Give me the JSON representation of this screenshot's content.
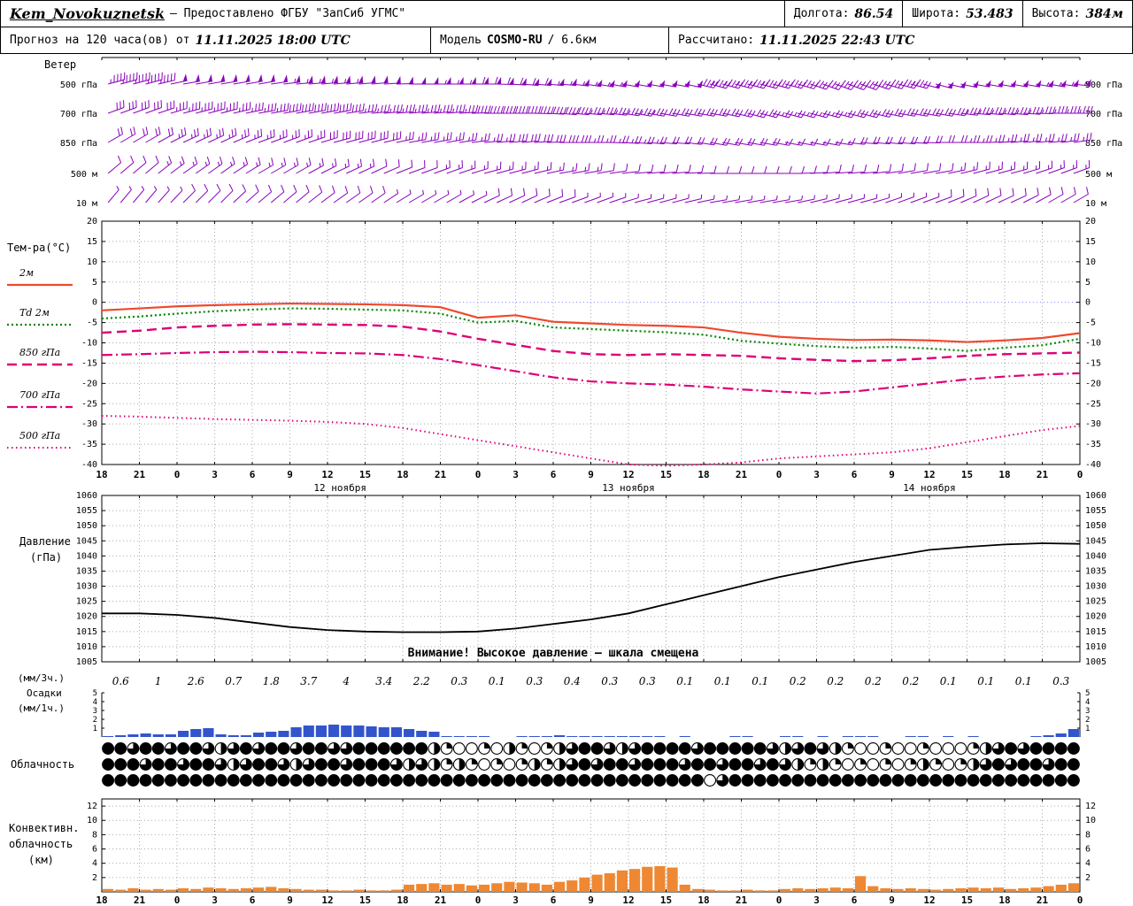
{
  "header": {
    "station": "Kem_Novokuznetsk",
    "provider": "— Предоставлено ФГБУ \"ЗапСиб УГМС\"",
    "lon_label": "Долгота:",
    "lon": "86.54",
    "lat_label": "Широта:",
    "lat": "53.483",
    "alt_label": "Высота:",
    "alt": "384м",
    "forecast_label": "Прогноз на 120 часа(ов) от",
    "run_time": "11.11.2025 18:00 UTC",
    "model_label": "Модель",
    "model_name": "COSMO-RU",
    "model_res": "/ 6.6км",
    "calc_label": "Рассчитано:",
    "calc_time": "11.11.2025 22:43 UTC"
  },
  "colors": {
    "wind": "#8800bb",
    "temp_2m": "#ee4a2d",
    "td_2m": "#008800",
    "temp_upper": "#dd0077",
    "pressure": "#000000",
    "precip": "#3355cc",
    "convective": "#ee8833",
    "zero_line": "#7788ff",
    "grid": "#aaaaaa"
  },
  "axis": {
    "hour_labels": [
      "18",
      "21",
      "0",
      "3",
      "6",
      "9",
      "12",
      "15",
      "18",
      "21",
      "0",
      "3",
      "6",
      "9",
      "12",
      "15",
      "18",
      "21",
      "0",
      "3",
      "6",
      "9",
      "12",
      "15",
      "18",
      "21",
      "0"
    ],
    "date_labels": [
      {
        "text": "12 ноября",
        "rel": 19
      },
      {
        "text": "13 ноября",
        "rel": 42
      },
      {
        "text": "14 ноября",
        "rel": 66
      }
    ]
  },
  "chart_data": [
    {
      "id": "wind",
      "type": "wind-barbs",
      "title": "Ветер",
      "units": "kt",
      "levels": [
        {
          "label": "500 гПа",
          "speeds": [
            45,
            45,
            50,
            50,
            50,
            55,
            55,
            50,
            50,
            55,
            60,
            60,
            55,
            55,
            50,
            50,
            45,
            45,
            40,
            40,
            45,
            45,
            50,
            50,
            50,
            55,
            55
          ],
          "dirs": [
            255,
            255,
            260,
            260,
            260,
            265,
            265,
            265,
            270,
            270,
            270,
            275,
            275,
            280,
            280,
            280,
            285,
            285,
            285,
            290,
            290,
            285,
            285,
            280,
            280,
            280,
            275
          ]
        },
        {
          "label": "700 гПа",
          "speeds": [
            30,
            30,
            35,
            35,
            35,
            40,
            40,
            35,
            35,
            35,
            40,
            40,
            40,
            35,
            35,
            30,
            30,
            30,
            25,
            25,
            30,
            30,
            30,
            35,
            35,
            35,
            35
          ],
          "dirs": [
            250,
            250,
            255,
            255,
            260,
            260,
            260,
            265,
            265,
            265,
            270,
            270,
            275,
            275,
            280,
            280,
            280,
            285,
            285,
            285,
            285,
            280,
            280,
            275,
            275,
            270,
            270
          ]
        },
        {
          "label": "850 гПа",
          "speeds": [
            20,
            20,
            25,
            25,
            25,
            25,
            30,
            30,
            25,
            25,
            25,
            30,
            30,
            25,
            25,
            20,
            20,
            20,
            15,
            15,
            20,
            20,
            20,
            25,
            25,
            25,
            25
          ],
          "dirs": [
            240,
            240,
            245,
            245,
            250,
            250,
            255,
            255,
            260,
            260,
            265,
            265,
            270,
            270,
            275,
            275,
            280,
            280,
            280,
            280,
            275,
            275,
            270,
            270,
            265,
            265,
            260
          ]
        },
        {
          "label": "500 м",
          "speeds": [
            10,
            12,
            15,
            15,
            15,
            15,
            15,
            12,
            10,
            15,
            15,
            15,
            15,
            12,
            10,
            10,
            10,
            10,
            8,
            10,
            10,
            10,
            12,
            15,
            15,
            15,
            15
          ],
          "dirs": [
            230,
            230,
            235,
            235,
            240,
            240,
            245,
            245,
            250,
            250,
            255,
            255,
            260,
            260,
            265,
            265,
            270,
            270,
            270,
            265,
            265,
            260,
            260,
            255,
            255,
            250,
            250
          ]
        },
        {
          "label": "10 м",
          "speeds": [
            5,
            5,
            8,
            8,
            10,
            10,
            10,
            8,
            5,
            5,
            8,
            10,
            8,
            5,
            5,
            5,
            5,
            5,
            5,
            5,
            5,
            5,
            8,
            8,
            10,
            10,
            10
          ],
          "dirs": [
            220,
            220,
            225,
            225,
            230,
            230,
            235,
            235,
            240,
            240,
            245,
            245,
            250,
            250,
            255,
            255,
            260,
            260,
            260,
            255,
            255,
            250,
            250,
            245,
            245,
            240,
            240
          ]
        }
      ]
    },
    {
      "id": "temperature",
      "type": "line",
      "title": "Тем-ра(°C)",
      "ylim": [
        -40,
        20
      ],
      "x_step_hours": 3,
      "yticks": [
        20,
        15,
        10,
        5,
        0,
        -5,
        -10,
        -15,
        -20,
        -25,
        -30,
        -35,
        -40
      ],
      "series": [
        {
          "name": "2м",
          "style": "solid",
          "color": "#ee4a2d",
          "width": 2.2,
          "values": [
            -2.0,
            -1.5,
            -1.0,
            -0.7,
            -0.5,
            -0.3,
            -0.4,
            -0.5,
            -0.7,
            -1.2,
            -3.8,
            -3.2,
            -4.8,
            -5.2,
            -5.6,
            -5.8,
            -6.2,
            -7.5,
            -8.5,
            -9.0,
            -9.3,
            -9.2,
            -9.4,
            -9.8,
            -9.4,
            -8.8,
            -7.6
          ]
        },
        {
          "name": "Td 2м",
          "style": "dotted",
          "color": "#008800",
          "width": 2.2,
          "values": [
            -4.0,
            -3.5,
            -2.8,
            -2.2,
            -1.8,
            -1.5,
            -1.6,
            -1.8,
            -2.0,
            -2.8,
            -5.0,
            -4.6,
            -6.2,
            -6.6,
            -7.0,
            -7.4,
            -8.0,
            -9.5,
            -10.2,
            -10.8,
            -11.2,
            -11.0,
            -11.4,
            -12.0,
            -11.2,
            -10.6,
            -9.0
          ]
        },
        {
          "name": "850 гПа",
          "style": "longdash",
          "color": "#dd0077",
          "width": 2.4,
          "values": [
            -7.5,
            -7.0,
            -6.2,
            -5.8,
            -5.5,
            -5.4,
            -5.5,
            -5.6,
            -6.0,
            -7.2,
            -9.0,
            -10.5,
            -12.0,
            -12.8,
            -13.0,
            -12.8,
            -13.0,
            -13.2,
            -13.8,
            -14.2,
            -14.5,
            -14.3,
            -13.8,
            -13.2,
            -12.8,
            -12.6,
            -12.4
          ]
        },
        {
          "name": "700 гПа",
          "style": "dashdot",
          "color": "#dd0077",
          "width": 2.2,
          "values": [
            -13.0,
            -12.8,
            -12.5,
            -12.3,
            -12.2,
            -12.3,
            -12.5,
            -12.6,
            -13.0,
            -14.0,
            -15.5,
            -17.0,
            -18.5,
            -19.5,
            -20.0,
            -20.3,
            -20.8,
            -21.5,
            -22.0,
            -22.5,
            -22.0,
            -21.0,
            -20.0,
            -19.0,
            -18.3,
            -17.8,
            -17.5
          ]
        },
        {
          "name": "500 гПа",
          "style": "finedot",
          "color": "#dd0077",
          "width": 2.0,
          "values": [
            -28.0,
            -28.2,
            -28.5,
            -28.8,
            -29.0,
            -29.2,
            -29.5,
            -30.0,
            -31.0,
            -32.5,
            -34.0,
            -35.5,
            -37.0,
            -38.5,
            -40.0,
            -40.3,
            -40.0,
            -39.5,
            -38.5,
            -38.0,
            -37.5,
            -37.0,
            -36.0,
            -34.5,
            -33.0,
            -31.5,
            -30.5
          ]
        }
      ]
    },
    {
      "id": "pressure",
      "type": "line",
      "title_lines": [
        "Давление",
        "(гПа)"
      ],
      "ylim": [
        1005,
        1060
      ],
      "yticks": [
        1060,
        1055,
        1050,
        1045,
        1040,
        1035,
        1030,
        1025,
        1020,
        1015,
        1010,
        1005
      ],
      "color": "#000000",
      "warning": "Внимание! Высокое давление — шкала смещена",
      "values": [
        1021,
        1021,
        1020.5,
        1019.5,
        1018,
        1016.5,
        1015.5,
        1015,
        1014.8,
        1014.8,
        1015,
        1016,
        1017.5,
        1019,
        1021,
        1024,
        1027,
        1030,
        1033,
        1035.5,
        1038,
        1040,
        1042,
        1043,
        1043.8,
        1044.2,
        1044
      ]
    },
    {
      "id": "precipitation",
      "type": "bar",
      "title_lines": [
        "(мм/3ч.)",
        "Осадки",
        "(мм/1ч.)"
      ],
      "ylim": [
        0,
        5
      ],
      "yticks": [
        1,
        2,
        3,
        4,
        5
      ],
      "color": "#3355cc",
      "labels_3h": [
        "0.6",
        "1",
        "2.6",
        "0.7",
        "1.8",
        "3.7",
        "4",
        "3.4",
        "2.2",
        "0.3",
        "0.1",
        "0.3",
        "0.4",
        "0.3",
        "0.3",
        "0.1",
        "0.1",
        "0.1",
        "0.2",
        "0.2",
        "0.2",
        "0.2",
        "0.1",
        "0.1",
        "0.1",
        "0.3"
      ],
      "hourly": [
        0.1,
        0.2,
        0.3,
        0.4,
        0.3,
        0.3,
        0.7,
        0.9,
        1.0,
        0.3,
        0.2,
        0.2,
        0.5,
        0.6,
        0.7,
        1.1,
        1.3,
        1.3,
        1.4,
        1.3,
        1.3,
        1.2,
        1.1,
        1.1,
        0.9,
        0.7,
        0.6,
        0.1,
        0.1,
        0.1,
        0.1,
        0,
        0,
        0.1,
        0.1,
        0.1,
        0.2,
        0.1,
        0.1,
        0.1,
        0.1,
        0.1,
        0.1,
        0.1,
        0.1,
        0,
        0.1,
        0,
        0,
        0,
        0.1,
        0.1,
        0,
        0,
        0.1,
        0.1,
        0,
        0.1,
        0,
        0.1,
        0.1,
        0.1,
        0,
        0,
        0.1,
        0.1,
        0,
        0.1,
        0,
        0.1,
        0,
        0,
        0,
        0,
        0.1,
        0.2,
        0.4,
        0.9
      ]
    },
    {
      "id": "cloudiness",
      "type": "symbols",
      "title": "Облачность",
      "rows": [
        [
          1,
          1,
          0.75,
          1,
          1,
          0.75,
          1,
          1,
          0.75,
          0.5,
          0.75,
          1,
          0.75,
          1,
          1,
          0.75,
          1,
          1,
          0.75,
          0.75,
          1,
          1,
          1,
          1,
          1,
          1,
          0.5,
          0.25,
          0,
          0,
          0.25,
          0,
          0.5,
          0.25,
          0,
          0.25,
          0.5,
          0.75,
          1,
          1,
          0.75,
          0.5,
          0.75,
          1,
          1,
          1,
          1,
          0.75,
          1,
          1,
          1,
          1,
          1,
          0.75,
          0.5,
          0.75,
          1,
          0.75,
          0.5,
          0.25,
          0,
          0,
          0.25,
          0,
          0,
          0.25,
          0,
          0,
          0,
          0.25,
          0.5,
          0.75,
          1,
          0.75,
          1,
          1,
          1,
          1
        ],
        [
          1,
          1,
          1,
          0.75,
          1,
          1,
          0.75,
          1,
          1,
          0.75,
          0.5,
          0.75,
          1,
          1,
          0.75,
          0.5,
          0.75,
          1,
          1,
          0.75,
          1,
          1,
          1,
          0.75,
          0.5,
          0.75,
          0.5,
          0.25,
          0.5,
          0.25,
          0,
          0.25,
          0,
          0.25,
          0.5,
          0.25,
          0.5,
          0.75,
          1,
          0.75,
          1,
          1,
          0.75,
          1,
          1,
          1,
          0.75,
          1,
          1,
          0.75,
          1,
          1,
          0.75,
          1,
          0.75,
          0.5,
          0.25,
          0.5,
          0.25,
          0,
          0.25,
          0,
          0.25,
          0,
          0.25,
          0.5,
          0.25,
          0,
          0.25,
          0.5,
          0.75,
          1,
          0.75,
          1,
          1,
          0.75,
          1,
          1
        ],
        [
          1,
          1,
          1,
          1,
          1,
          1,
          1,
          1,
          1,
          1,
          1,
          1,
          1,
          1,
          1,
          1,
          1,
          1,
          1,
          1,
          1,
          1,
          1,
          1,
          1,
          1,
          1,
          1,
          1,
          1,
          1,
          1,
          1,
          1,
          1,
          1,
          1,
          1,
          1,
          1,
          1,
          1,
          1,
          1,
          1,
          1,
          1,
          1,
          0,
          0.75,
          1,
          1,
          1,
          1,
          1,
          1,
          1,
          1,
          1,
          1,
          1,
          1,
          1,
          1,
          1,
          1,
          1,
          1,
          1,
          1,
          1,
          1,
          1,
          1,
          1,
          1,
          1,
          1
        ]
      ]
    },
    {
      "id": "convective",
      "type": "bar",
      "title_lines": [
        "Конвективн.",
        "облачность",
        "(км)"
      ],
      "ylim": [
        0,
        13
      ],
      "yticks": [
        2,
        4,
        6,
        8,
        10,
        12
      ],
      "color": "#ee8833",
      "hourly": [
        0.4,
        0.3,
        0.5,
        0.3,
        0.4,
        0.3,
        0.5,
        0.4,
        0.6,
        0.5,
        0.4,
        0.5,
        0.6,
        0.7,
        0.5,
        0.4,
        0.3,
        0.3,
        0.2,
        0.2,
        0.3,
        0.2,
        0.2,
        0.3,
        1.0,
        1.1,
        1.2,
        1.0,
        1.1,
        0.9,
        1.0,
        1.2,
        1.4,
        1.3,
        1.2,
        1.0,
        1.4,
        1.6,
        2.0,
        2.4,
        2.6,
        3.0,
        3.2,
        3.5,
        3.6,
        3.4,
        1.0,
        0.4,
        0.3,
        0.2,
        0.2,
        0.3,
        0.2,
        0.2,
        0.4,
        0.5,
        0.4,
        0.5,
        0.6,
        0.5,
        2.2,
        0.8,
        0.5,
        0.4,
        0.5,
        0.4,
        0.3,
        0.4,
        0.5,
        0.6,
        0.5,
        0.6,
        0.4,
        0.5,
        0.6,
        0.8,
        1.0,
        1.2
      ]
    }
  ]
}
